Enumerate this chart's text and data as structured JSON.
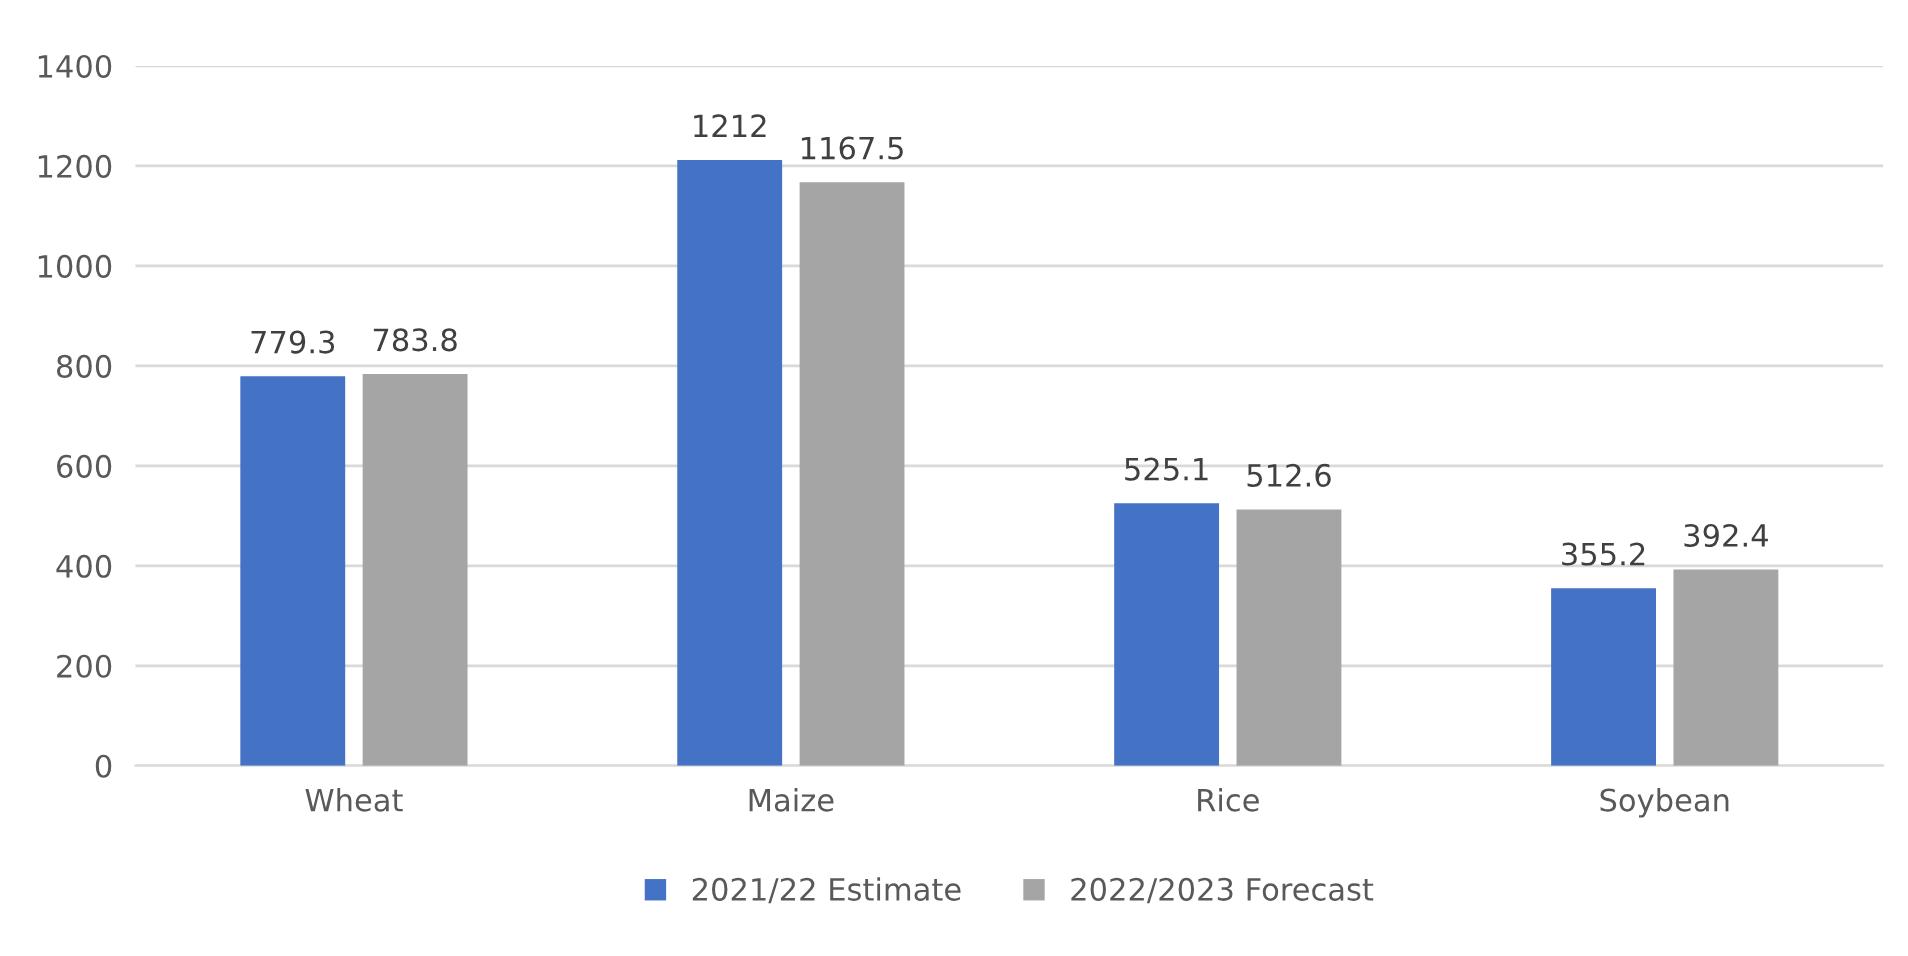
{
  "chart_data": {
    "type": "bar",
    "categories": [
      "Wheat",
      "Maize",
      "Rice",
      "Soybean"
    ],
    "series": [
      {
        "name": "2021/22 Estimate",
        "color": "#4472c4",
        "values": [
          779.3,
          1212,
          525.1,
          355.2
        ]
      },
      {
        "name": "2022/2023 Forecast",
        "color": "#a5a5a5",
        "values": [
          783.8,
          1167.5,
          512.6,
          392.4
        ]
      }
    ],
    "ylim": [
      0,
      1400
    ],
    "yticks": [
      0,
      200,
      400,
      600,
      800,
      1000,
      1200,
      1400
    ],
    "grid": "y",
    "legend": "bottom",
    "data_labels": true
  }
}
